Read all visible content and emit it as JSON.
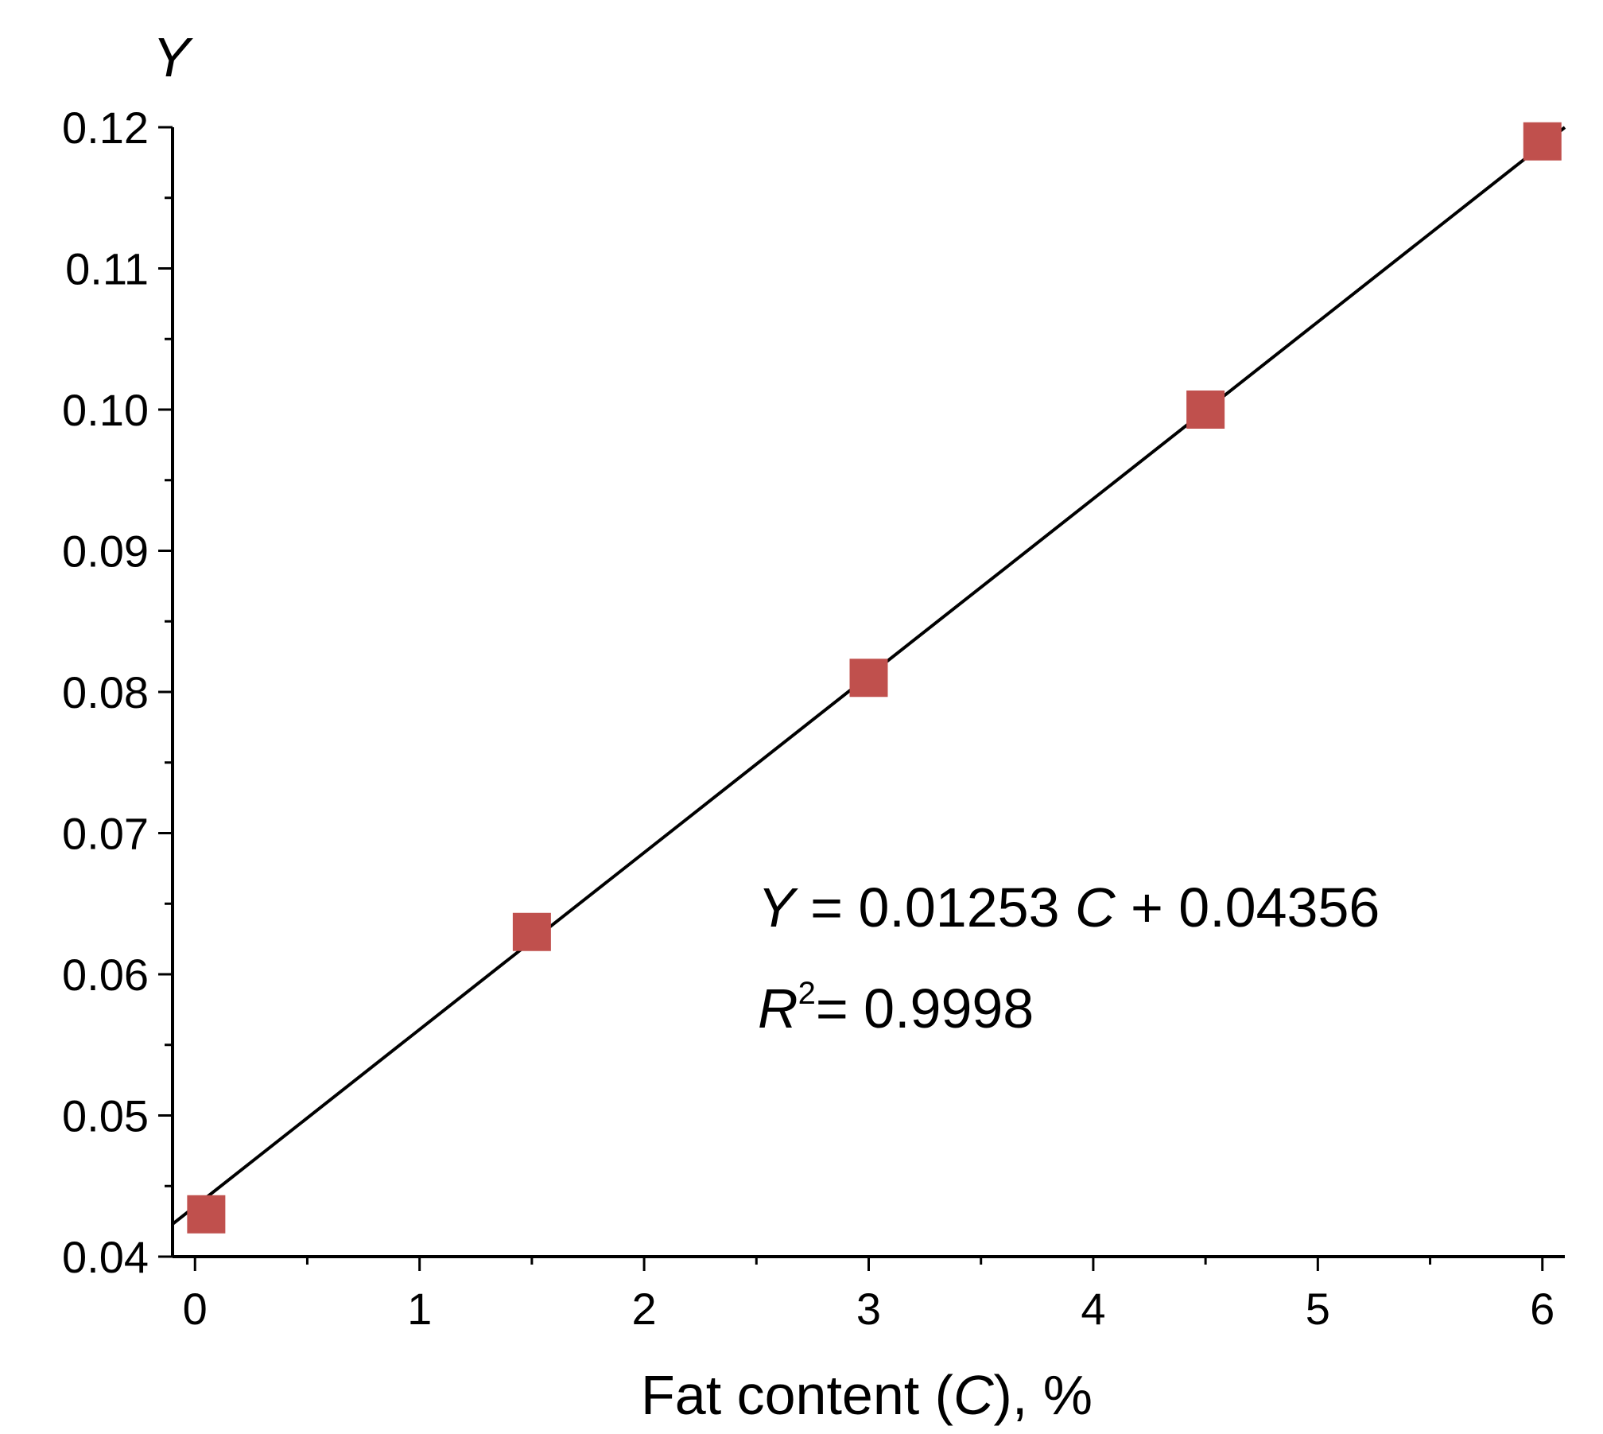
{
  "chart_data": {
    "type": "scatter",
    "title": "",
    "xlabel": "Fat content (C), %",
    "xlabel_parts": {
      "pre": "Fat content (",
      "var": "C",
      "post": "), %"
    },
    "ylabel": "Y",
    "xlim": [
      -0.1,
      6.1
    ],
    "ylim": [
      0.04,
      0.12
    ],
    "x_ticks": [
      0,
      1,
      2,
      3,
      4,
      5,
      6
    ],
    "x_tick_labels": [
      "0",
      "1",
      "2",
      "3",
      "4",
      "5",
      "6"
    ],
    "x_minor_ticks": [
      0.5,
      1.5,
      2.5,
      3.5,
      4.5,
      5.5
    ],
    "y_ticks": [
      0.04,
      0.05,
      0.06,
      0.07,
      0.08,
      0.09,
      0.1,
      0.11,
      0.12
    ],
    "y_tick_labels": [
      "0.04",
      "0.05",
      "0.06",
      "0.07",
      "0.08",
      "0.09",
      "0.10",
      "0.11",
      "0.12"
    ],
    "y_minor_ticks": [
      0.045,
      0.055,
      0.065,
      0.075,
      0.085,
      0.095,
      0.105,
      0.115
    ],
    "grid": false,
    "series": [
      {
        "marker": "square",
        "color": "#c0504d",
        "x": [
          0.05,
          1.5,
          3.0,
          4.5,
          6.0
        ],
        "y": [
          0.043,
          0.063,
          0.081,
          0.1,
          0.119
        ]
      }
    ],
    "fit_line": {
      "slope": 0.01253,
      "intercept": 0.04356,
      "color": "#000000",
      "x_range": [
        -0.1,
        6.1
      ]
    },
    "annotations": {
      "equation": {
        "var_y": "Y",
        "eq_mid": " = 0.01253 ",
        "var_c": "C",
        "eq_end": " + 0.04356"
      },
      "r2": {
        "var_r": "R",
        "sup": "2",
        "value": "= 0.9998"
      }
    }
  }
}
